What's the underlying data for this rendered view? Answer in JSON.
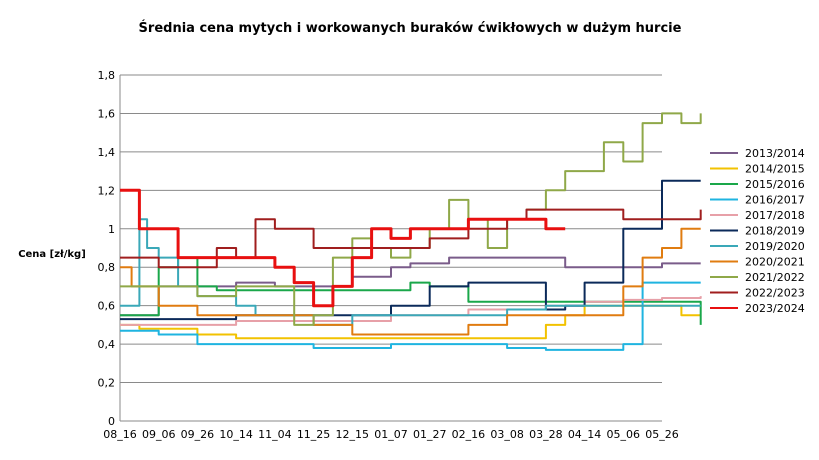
{
  "chart_data": {
    "type": "line",
    "title": "Średnia cena mytych i workowanych buraków ćwikłowych w dużym hurcie",
    "ylabel": "Cena [zł/kg]",
    "xlabel": "",
    "ylim": [
      0,
      1.8
    ],
    "yticks": [
      "0",
      "0,2",
      "0,4",
      "0,6",
      "0,8",
      "1",
      "1,2",
      "1,4",
      "1,6",
      "1,8"
    ],
    "categories": [
      "08_16",
      "09_06",
      "09_26",
      "10_14",
      "11_04",
      "11_25",
      "12_15",
      "01_07",
      "01_27",
      "02_16",
      "03_08",
      "03_28",
      "04_14",
      "05_06",
      "05_26"
    ],
    "grid": "horizontal",
    "legend_position": "right",
    "series": [
      {
        "name": "2013/2014",
        "color": "#7a5c8a",
        "width": 2,
        "x": [
          0,
          1,
          2,
          3,
          4,
          5,
          6,
          7,
          7.5,
          8,
          8.5,
          9,
          9.5,
          10,
          10.5,
          11,
          11.5,
          12,
          13,
          14,
          15
        ],
        "y": [
          0.55,
          0.7,
          0.7,
          0.72,
          0.7,
          0.7,
          0.75,
          0.8,
          0.82,
          0.82,
          0.85,
          0.85,
          0.85,
          0.85,
          0.85,
          0.85,
          0.8,
          0.8,
          0.8,
          0.82,
          0.82
        ]
      },
      {
        "name": "2014/2015",
        "color": "#f2c200",
        "width": 2,
        "x": [
          0,
          0.5,
          1,
          2,
          3,
          4,
          5,
          6,
          7,
          8,
          9,
          10,
          10.5,
          11,
          11.5,
          12,
          13,
          14,
          14.5,
          15
        ],
        "y": [
          0.5,
          0.48,
          0.48,
          0.45,
          0.43,
          0.43,
          0.43,
          0.43,
          0.43,
          0.43,
          0.43,
          0.43,
          0.43,
          0.5,
          0.55,
          0.6,
          0.6,
          0.6,
          0.55,
          0.55
        ]
      },
      {
        "name": "2015/2016",
        "color": "#1aa74a",
        "width": 2,
        "x": [
          0,
          0.5,
          1,
          1.5,
          2,
          2.5,
          3,
          4,
          5,
          6,
          7,
          7.5,
          8,
          9,
          10,
          11,
          12,
          13,
          14,
          15
        ],
        "y": [
          0.55,
          0.55,
          0.8,
          0.85,
          0.7,
          0.68,
          0.68,
          0.68,
          0.68,
          0.68,
          0.68,
          0.72,
          0.7,
          0.62,
          0.62,
          0.62,
          0.62,
          0.62,
          0.62,
          0.5
        ]
      },
      {
        "name": "2016/2017",
        "color": "#1fb4e0",
        "width": 2,
        "x": [
          0,
          1,
          2,
          3,
          4,
          5,
          6,
          7,
          8,
          9,
          10,
          11,
          12,
          13,
          13.5,
          14,
          15
        ],
        "y": [
          0.47,
          0.45,
          0.4,
          0.4,
          0.4,
          0.38,
          0.38,
          0.4,
          0.4,
          0.4,
          0.38,
          0.37,
          0.37,
          0.4,
          0.72,
          0.72,
          0.72
        ]
      },
      {
        "name": "2017/2018",
        "color": "#e7a0a8",
        "width": 2,
        "x": [
          0,
          1,
          2,
          3,
          4,
          5,
          6,
          7,
          8,
          9,
          10,
          11,
          12,
          13,
          14,
          15
        ],
        "y": [
          0.5,
          0.5,
          0.5,
          0.52,
          0.52,
          0.52,
          0.52,
          0.55,
          0.55,
          0.58,
          0.58,
          0.6,
          0.62,
          0.63,
          0.64,
          0.65
        ]
      },
      {
        "name": "2018/2019",
        "color": "#0b2a5a",
        "width": 2,
        "x": [
          0,
          1,
          2,
          3,
          4,
          5,
          6,
          7,
          8,
          9,
          10,
          11,
          11.5,
          12,
          13,
          14,
          14.5,
          15
        ],
        "y": [
          0.53,
          0.53,
          0.53,
          0.55,
          0.55,
          0.55,
          0.55,
          0.6,
          0.7,
          0.72,
          0.72,
          0.58,
          0.6,
          0.72,
          1.0,
          1.25,
          1.25,
          1.25
        ]
      },
      {
        "name": "2019/2020",
        "color": "#3aa8b8",
        "width": 2,
        "x": [
          0,
          0.3,
          0.5,
          0.7,
          1,
          1.5,
          2,
          2.5,
          3,
          3.5,
          4,
          5,
          6,
          7,
          8,
          9,
          10,
          11,
          12,
          13,
          14,
          15
        ],
        "y": [
          0.6,
          0.6,
          1.05,
          0.9,
          0.85,
          0.7,
          0.65,
          0.65,
          0.6,
          0.55,
          0.55,
          0.5,
          0.55,
          0.55,
          0.55,
          0.55,
          0.58,
          0.6,
          0.6,
          0.6,
          0.6,
          0.6
        ]
      },
      {
        "name": "2020/2021",
        "color": "#e07c10",
        "width": 2,
        "x": [
          0,
          0.3,
          1,
          2,
          3,
          4,
          5,
          6,
          7,
          8,
          9,
          10,
          11,
          12,
          13,
          13.5,
          14,
          14.5,
          15
        ],
        "y": [
          0.8,
          0.7,
          0.6,
          0.55,
          0.55,
          0.55,
          0.5,
          0.45,
          0.45,
          0.45,
          0.5,
          0.55,
          0.55,
          0.55,
          0.7,
          0.85,
          0.9,
          1.0,
          1.0
        ]
      },
      {
        "name": "2021/2022",
        "color": "#8fa848",
        "width": 2,
        "x": [
          0,
          1,
          1.5,
          2,
          3,
          4,
          4.5,
          5,
          5.5,
          6,
          6.5,
          7,
          7.5,
          8,
          8.5,
          9,
          9.5,
          10,
          10.5,
          11,
          11.5,
          12,
          12.5,
          13,
          13.5,
          14,
          14.5,
          15
        ],
        "y": [
          0.7,
          0.7,
          0.7,
          0.65,
          0.7,
          0.7,
          0.5,
          0.55,
          0.85,
          0.95,
          0.9,
          0.85,
          0.9,
          1.0,
          1.15,
          1.05,
          0.9,
          1.05,
          1.1,
          1.2,
          1.3,
          1.3,
          1.45,
          1.35,
          1.55,
          1.6,
          1.55,
          1.6
        ]
      },
      {
        "name": "2022/2023",
        "color": "#a01e1e",
        "width": 2,
        "x": [
          0,
          1,
          2,
          2.5,
          3,
          3.5,
          4,
          5,
          6,
          7,
          8,
          9,
          10,
          10.5,
          11,
          11.5,
          12,
          13,
          14,
          15
        ],
        "y": [
          0.85,
          0.8,
          0.8,
          0.9,
          0.85,
          1.05,
          1.0,
          0.9,
          0.9,
          0.9,
          0.95,
          1.0,
          1.05,
          1.1,
          1.1,
          1.1,
          1.1,
          1.05,
          1.05,
          1.1
        ]
      },
      {
        "name": "2023/2024",
        "color": "#e81010",
        "width": 3,
        "x": [
          0,
          0.5,
          1,
          1.5,
          2,
          3,
          4,
          4.5,
          5,
          5.5,
          6,
          6.5,
          7,
          7.5,
          8,
          9,
          10,
          11,
          11.5
        ],
        "y": [
          1.2,
          1.0,
          1.0,
          0.85,
          0.85,
          0.85,
          0.8,
          0.72,
          0.6,
          0.7,
          0.85,
          1.0,
          0.95,
          1.0,
          1.0,
          1.05,
          1.05,
          1.0,
          1.0
        ]
      }
    ]
  }
}
